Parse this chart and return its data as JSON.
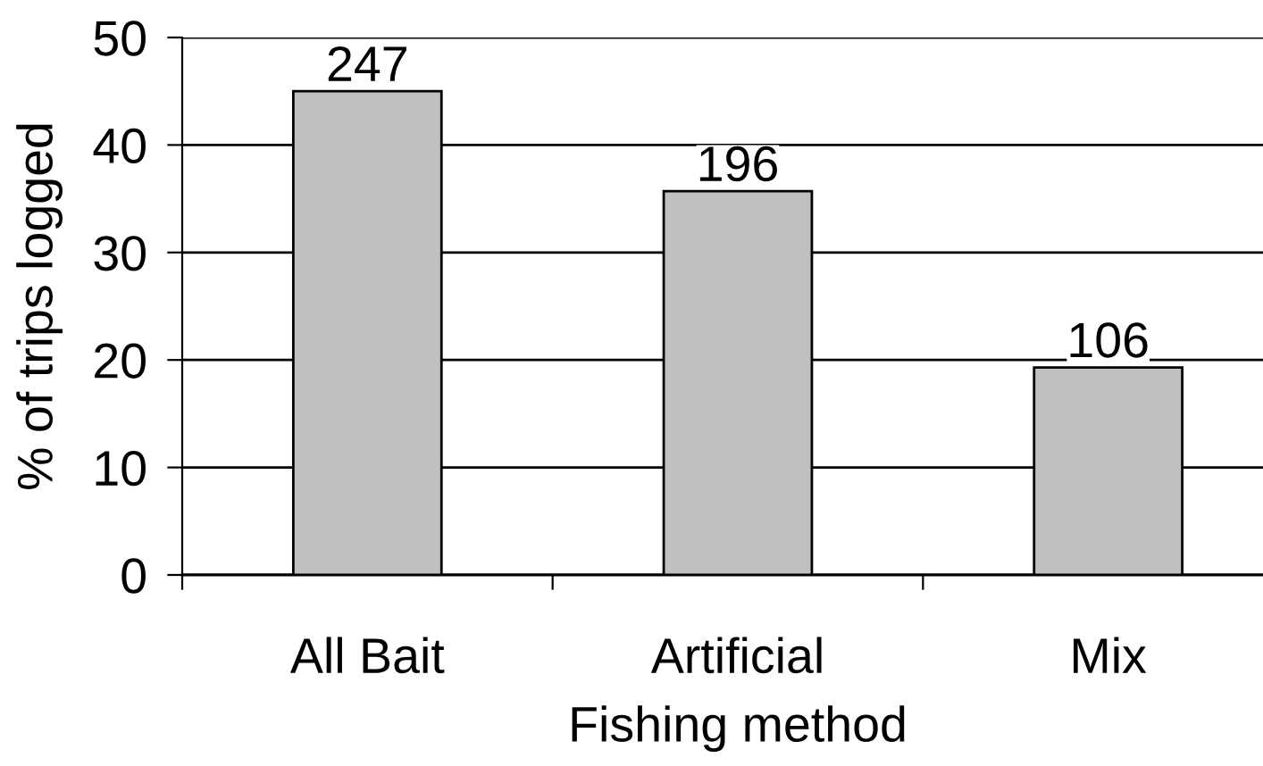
{
  "chart_data": {
    "type": "bar",
    "xlabel": "Fishing method",
    "ylabel": "% of trips logged",
    "categories": [
      "All Bait",
      "Artificial",
      "Mix"
    ],
    "values": [
      45.0,
      35.7,
      19.3
    ],
    "color": "#c0c0c0",
    "annotations": [
      {
        "text": "247",
        "x": "All Bait",
        "y": 45.0
      },
      {
        "text": "196",
        "x": "Artificial",
        "y": 35.7
      },
      {
        "text": "106",
        "x": "Mix",
        "y": 19.3
      }
    ],
    "ylim": [
      0,
      50
    ],
    "yticks": [
      0,
      10,
      20,
      30,
      40,
      50
    ],
    "grid": "y"
  }
}
